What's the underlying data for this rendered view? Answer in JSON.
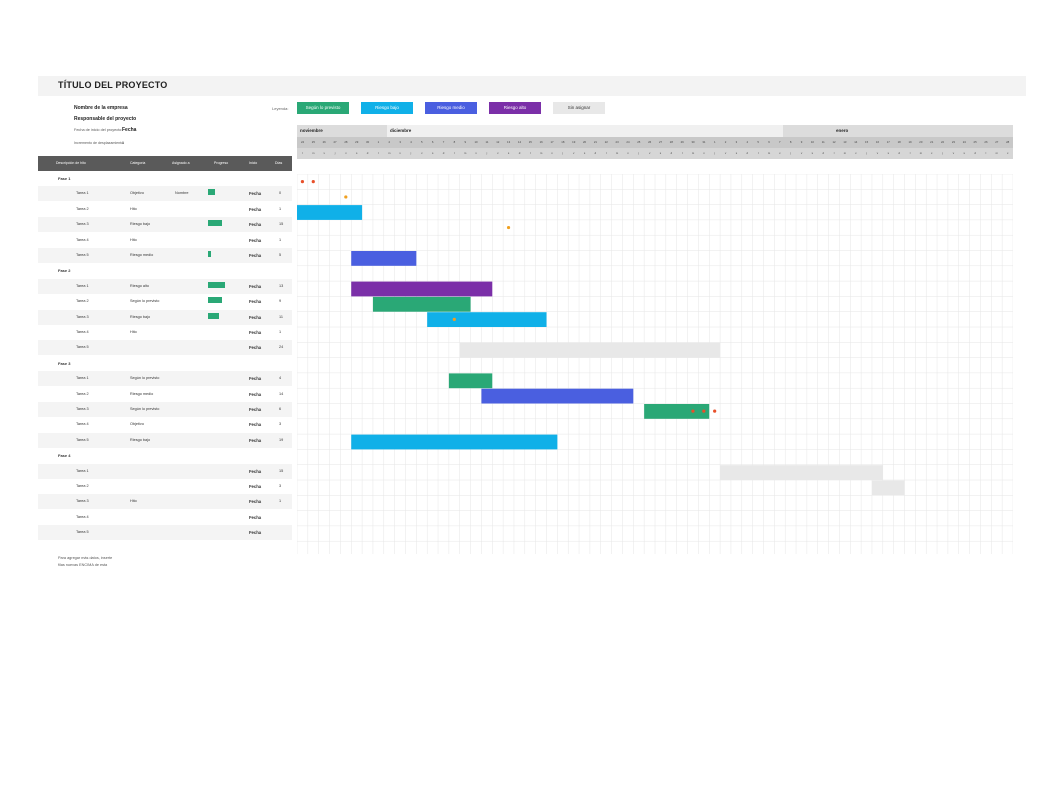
{
  "header": {
    "title": "TÍTULO DEL PROYECTO",
    "company": "Nombre de la empresa",
    "manager": "Responsable del proyecto",
    "start_label": "Fecha de inicio del proyecto:",
    "start_value": "Fecha",
    "increment_label": "Incremento de desplazamiento:",
    "increment_value": "1"
  },
  "legend": {
    "label": "Leyenda:",
    "items": [
      {
        "label": "Según lo previsto",
        "color": "#2aa876"
      },
      {
        "label": "Riesgo bajo",
        "color": "#10b0e8"
      },
      {
        "label": "Riesgo medio",
        "color": "#4a5fe0"
      },
      {
        "label": "Riesgo alto",
        "color": "#7b2fa8"
      },
      {
        "label": "Sin asignar",
        "color": "#e8e8e8"
      }
    ]
  },
  "columns": [
    "Descripción de hito",
    "Categoría",
    "Asignado a",
    "Progreso",
    "Inicio",
    "Días"
  ],
  "rows": [
    {
      "type": "phase",
      "label": "Fase 1"
    },
    {
      "type": "task",
      "label": "Tarea 1",
      "category": "Objetivo",
      "assigned": "Nombre",
      "progress": 25,
      "start": "Fecha",
      "days": "0"
    },
    {
      "type": "task",
      "label": "Tarea 2",
      "category": "Hito",
      "assigned": "",
      "progress": null,
      "start": "Fecha",
      "days": "1"
    },
    {
      "type": "task",
      "label": "Tarea 3",
      "category": "Riesgo bajo",
      "assigned": "",
      "progress": 50,
      "start": "Fecha",
      "days": "15"
    },
    {
      "type": "task",
      "label": "Tarea 4",
      "category": "Hito",
      "assigned": "",
      "progress": null,
      "start": "Fecha",
      "days": "1"
    },
    {
      "type": "task",
      "label": "Tarea 5",
      "category": "Riesgo medio",
      "assigned": "",
      "progress": 10,
      "start": "Fecha",
      "days": "5"
    },
    {
      "type": "phase",
      "label": "Fase 2"
    },
    {
      "type": "task",
      "label": "Tarea 1",
      "category": "Riesgo alto",
      "assigned": "",
      "progress": 60,
      "start": "Fecha",
      "days": "13"
    },
    {
      "type": "task",
      "label": "Tarea 2",
      "category": "Según lo previsto",
      "assigned": "",
      "progress": 50,
      "start": "Fecha",
      "days": "9"
    },
    {
      "type": "task",
      "label": "Tarea 3",
      "category": "Riesgo bajo",
      "assigned": "",
      "progress": 40,
      "start": "Fecha",
      "days": "11"
    },
    {
      "type": "task",
      "label": "Tarea 4",
      "category": "Hito",
      "assigned": "",
      "progress": null,
      "start": "Fecha",
      "days": "1"
    },
    {
      "type": "task",
      "label": "Tarea 5",
      "category": "",
      "assigned": "",
      "progress": null,
      "start": "Fecha",
      "days": "24"
    },
    {
      "type": "phase",
      "label": "Fase 3"
    },
    {
      "type": "task",
      "label": "Tarea 1",
      "category": "Según lo previsto",
      "assigned": "",
      "progress": null,
      "start": "Fecha",
      "days": "4"
    },
    {
      "type": "task",
      "label": "Tarea 2",
      "category": "Riesgo medio",
      "assigned": "",
      "progress": null,
      "start": "Fecha",
      "days": "14"
    },
    {
      "type": "task",
      "label": "Tarea 3",
      "category": "Según lo previsto",
      "assigned": "",
      "progress": null,
      "start": "Fecha",
      "days": "6"
    },
    {
      "type": "task",
      "label": "Tarea 4",
      "category": "Objetivo",
      "assigned": "",
      "progress": null,
      "start": "Fecha",
      "days": "3"
    },
    {
      "type": "task",
      "label": "Tarea 5",
      "category": "Riesgo bajo",
      "assigned": "",
      "progress": null,
      "start": "Fecha",
      "days": "19"
    },
    {
      "type": "phase",
      "label": "Fase 4"
    },
    {
      "type": "task",
      "label": "Tarea 1",
      "category": "",
      "assigned": "",
      "progress": null,
      "start": "Fecha",
      "days": "15"
    },
    {
      "type": "task",
      "label": "Tarea 2",
      "category": "",
      "assigned": "",
      "progress": null,
      "start": "Fecha",
      "days": "3"
    },
    {
      "type": "task",
      "label": "Tarea 3",
      "category": "Hito",
      "assigned": "",
      "progress": null,
      "start": "Fecha",
      "days": "1"
    },
    {
      "type": "task",
      "label": "Tarea 4",
      "category": "",
      "assigned": "",
      "progress": null,
      "start": "Fecha",
      "days": ""
    },
    {
      "type": "task",
      "label": "Tarea 5",
      "category": "",
      "assigned": "",
      "progress": null,
      "start": "Fecha",
      "days": ""
    }
  ],
  "timeline": {
    "months": [
      "noviembre",
      "diciembre",
      "enero"
    ],
    "days": [
      "24",
      "25",
      "26",
      "27",
      "28",
      "29",
      "30",
      "1",
      "2",
      "3",
      "4",
      "5",
      "6",
      "7",
      "8",
      "9",
      "10",
      "11",
      "12",
      "13",
      "14",
      "15",
      "16",
      "17",
      "18",
      "19",
      "20",
      "21",
      "22",
      "23",
      "24",
      "25",
      "26",
      "27",
      "28",
      "29",
      "30",
      "31",
      "1",
      "2",
      "3",
      "4",
      "5",
      "6",
      "7",
      "8",
      "9",
      "10",
      "11",
      "12",
      "13",
      "14",
      "15",
      "16",
      "17",
      "18",
      "19",
      "20",
      "21",
      "22",
      "23",
      "24",
      "25",
      "26",
      "27",
      "28"
    ],
    "dows": [
      "l",
      "m",
      "x",
      "j",
      "v",
      "s",
      "d",
      "l",
      "m",
      "x",
      "j",
      "v",
      "s",
      "d",
      "l",
      "m",
      "x",
      "j",
      "v",
      "s",
      "d",
      "l",
      "m",
      "x",
      "j",
      "v",
      "s",
      "d",
      "l",
      "m",
      "x",
      "j",
      "v",
      "s",
      "d",
      "l",
      "m",
      "x",
      "j",
      "v",
      "s",
      "d",
      "l",
      "m",
      "x",
      "j",
      "v",
      "s",
      "d",
      "l",
      "m",
      "x",
      "j",
      "v",
      "s",
      "d",
      "l",
      "m",
      "x",
      "j",
      "v",
      "s",
      "d",
      "l",
      "m",
      "x"
    ]
  },
  "footer": {
    "line1": "Para agregar más datos, inserte",
    "line2": "filas nuevas ENCIMA de esta"
  }
}
